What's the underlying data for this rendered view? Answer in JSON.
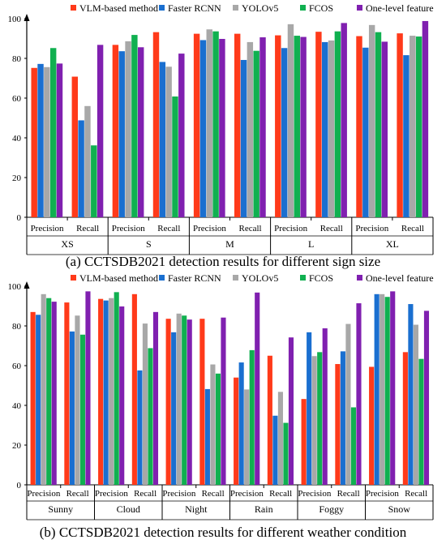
{
  "chart_data": [
    {
      "type": "bar",
      "caption": "(a) CCTSDB2021 detection results for different sign size",
      "groups": [
        "XS",
        "S",
        "M",
        "L",
        "XL"
      ],
      "metrics": [
        "Precision",
        "Recall"
      ],
      "ylim": [
        0,
        100
      ],
      "yticks": [
        0,
        20,
        40,
        60,
        80,
        100
      ],
      "legend_position": "top",
      "series": [
        {
          "name": "VLM-based method",
          "color": "#ff3a1a",
          "values": [
            75.2,
            70.8,
            86.8,
            93.2,
            92.4,
            92.4,
            91.6,
            93.4,
            91.2,
            92.6
          ]
        },
        {
          "name": "Faster RCNN",
          "color": "#1a6fd0",
          "values": [
            77.2,
            48.8,
            83.6,
            78.2,
            89.2,
            79.2,
            85.2,
            88.2,
            85.4,
            81.6
          ]
        },
        {
          "name": "YOLOv5",
          "color": "#a8a8a8",
          "values": [
            75.6,
            56.0,
            88.6,
            75.8,
            94.6,
            88.2,
            97.2,
            89.0,
            96.8,
            91.4
          ]
        },
        {
          "name": "FCOS",
          "color": "#10b050",
          "values": [
            85.2,
            36.2,
            91.8,
            60.8,
            93.6,
            83.8,
            91.4,
            93.6,
            93.2,
            91.0
          ]
        },
        {
          "name": "One-level feature",
          "color": "#8020b0",
          "values": [
            77.4,
            86.8,
            85.6,
            82.4,
            89.8,
            90.6,
            90.8,
            97.8,
            88.4,
            98.8
          ]
        }
      ]
    },
    {
      "type": "bar",
      "caption": "(b) CCTSDB2021 detection results for different weather condition",
      "groups": [
        "Sunny",
        "Cloud",
        "Night",
        "Rain",
        "Foggy",
        "Snow"
      ],
      "metrics": [
        "Precision",
        "Recall"
      ],
      "ylim": [
        0,
        100
      ],
      "yticks": [
        0,
        20,
        40,
        60,
        80,
        100
      ],
      "legend_position": "top",
      "series": [
        {
          "name": "VLM-based method",
          "color": "#ff3a1a",
          "values": [
            87.0,
            91.8,
            93.6,
            96.0,
            83.6,
            83.6,
            54.0,
            65.0,
            43.2,
            60.8,
            59.4,
            66.8
          ]
        },
        {
          "name": "Faster RCNN",
          "color": "#1a6fd0",
          "values": [
            85.6,
            77.2,
            92.8,
            57.6,
            76.8,
            48.2,
            61.6,
            34.8,
            76.8,
            67.2,
            96.0,
            91.0
          ]
        },
        {
          "name": "YOLOv5",
          "color": "#a8a8a8",
          "values": [
            96.0,
            85.2,
            94.0,
            81.2,
            86.2,
            60.6,
            48.0,
            46.8,
            64.8,
            81.0,
            96.0,
            80.6
          ]
        },
        {
          "name": "FCOS",
          "color": "#10b050",
          "values": [
            94.0,
            75.6,
            97.0,
            68.8,
            85.2,
            56.0,
            67.8,
            31.2,
            66.8,
            39.0,
            94.6,
            63.4
          ]
        },
        {
          "name": "One-level feature",
          "color": "#8020b0",
          "values": [
            92.2,
            97.4,
            89.8,
            87.0,
            83.2,
            84.2,
            96.8,
            74.2,
            78.8,
            91.4,
            97.4,
            87.6
          ]
        }
      ]
    }
  ]
}
